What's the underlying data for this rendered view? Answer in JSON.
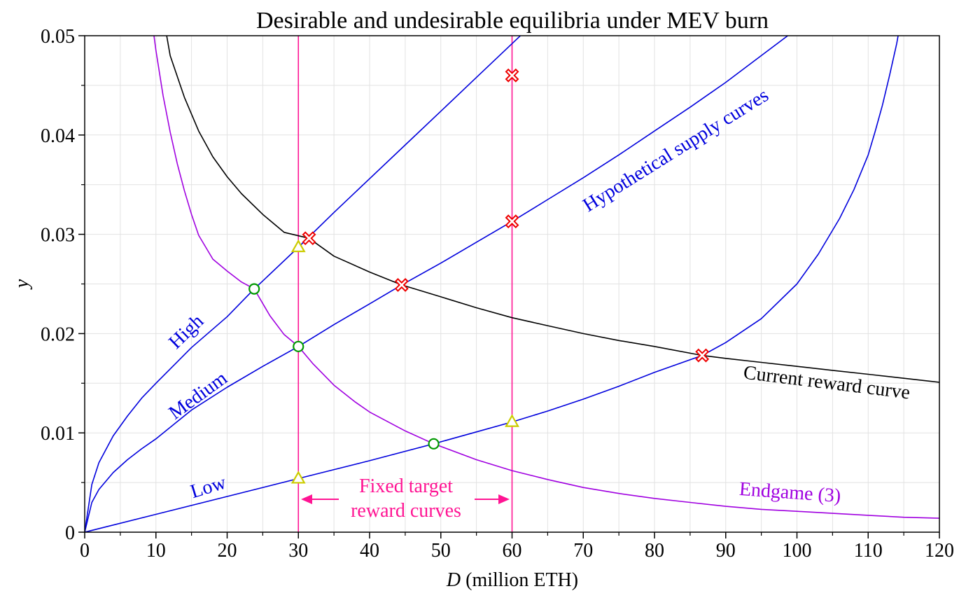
{
  "chart_data": {
    "type": "line",
    "title": "Desirable and undesirable equilibria under MEV burn",
    "xlabel_italic": "D",
    "xlabel_rest": " (million ETH)",
    "ylabel": "y",
    "xlim": [
      0,
      120
    ],
    "ylim": [
      0,
      0.05
    ],
    "x_ticks": [
      0,
      10,
      20,
      30,
      40,
      50,
      60,
      70,
      80,
      90,
      100,
      110,
      120
    ],
    "y_ticks": [
      0,
      0.01,
      0.02,
      0.03,
      0.04,
      0.05
    ],
    "x_tick_labels": [
      "0",
      "10",
      "20",
      "30",
      "40",
      "50",
      "60",
      "70",
      "80",
      "90",
      "100",
      "110",
      "120"
    ],
    "y_tick_labels": [
      "0",
      "0.01",
      "0.02",
      "0.03",
      "0.04",
      "0.05"
    ],
    "grid": true,
    "colors": {
      "supply": "#0000dd",
      "reward": "#000000",
      "endgame": "#a000e0",
      "target": "#ff1493",
      "desirable": "#009900",
      "undesirable": "#ee0000",
      "triangle": "#cccc00"
    },
    "series": [
      {
        "name": "High",
        "kind": "supply",
        "x": [
          0,
          1,
          2,
          4,
          6,
          8,
          10,
          15,
          20,
          23.8,
          25,
          30,
          35,
          40,
          45,
          50,
          55,
          60,
          65,
          67.5
        ],
        "y": [
          0,
          0.0048,
          0.007,
          0.0097,
          0.0117,
          0.0135,
          0.015,
          0.0186,
          0.0217,
          0.0245,
          0.0253,
          0.0287,
          0.0322,
          0.0356,
          0.039,
          0.0424,
          0.0458,
          0.0492,
          0.0526,
          0.0542
        ]
      },
      {
        "name": "Medium",
        "kind": "supply",
        "x": [
          0,
          1,
          2,
          4,
          6,
          8,
          10,
          15,
          20,
          25,
          30,
          35,
          40,
          44.5,
          50,
          55,
          60,
          65,
          70,
          75,
          80,
          85,
          90,
          95,
          100
        ],
        "y": [
          0,
          0.003,
          0.0043,
          0.006,
          0.0073,
          0.0084,
          0.0094,
          0.0123,
          0.0146,
          0.0167,
          0.0187,
          0.0209,
          0.023,
          0.0249,
          0.0271,
          0.0292,
          0.0313,
          0.0335,
          0.0357,
          0.038,
          0.0404,
          0.0428,
          0.0453,
          0.048,
          0.0507
        ]
      },
      {
        "name": "Low",
        "kind": "supply",
        "x": [
          0,
          10,
          20,
          30,
          40,
          49,
          55,
          60,
          65,
          70,
          75,
          80,
          86.7,
          90,
          95,
          100,
          103,
          106,
          108,
          110,
          111,
          112,
          113,
          114,
          114.7
        ],
        "y": [
          0,
          0.0018,
          0.0036,
          0.0054,
          0.0072,
          0.0089,
          0.0101,
          0.0111,
          0.0122,
          0.0134,
          0.0147,
          0.0161,
          0.0178,
          0.0191,
          0.0215,
          0.025,
          0.028,
          0.0316,
          0.0345,
          0.038,
          0.0404,
          0.043,
          0.046,
          0.0492,
          0.052
        ]
      },
      {
        "name": "Current reward curve",
        "kind": "reward",
        "x": [
          11.0,
          12,
          14,
          16,
          18,
          20,
          22,
          25,
          28,
          31.5,
          35,
          40,
          44.5,
          50,
          55,
          60,
          65,
          70,
          75,
          80,
          86.7,
          90,
          95,
          100,
          105,
          110,
          115,
          120
        ],
        "y": [
          0.0521,
          0.048,
          0.0438,
          0.0404,
          0.0378,
          0.0358,
          0.0341,
          0.032,
          0.0302,
          0.0296,
          0.0278,
          0.0262,
          0.0249,
          0.0237,
          0.0226,
          0.0216,
          0.0208,
          0.02,
          0.0193,
          0.0187,
          0.0178,
          0.0175,
          0.0171,
          0.0167,
          0.0163,
          0.0159,
          0.0155,
          0.0151
        ]
      },
      {
        "name": "Endgame (3)",
        "kind": "endgame",
        "x": [
          9.5,
          10,
          11,
          12,
          13,
          14,
          15,
          16,
          18,
          20,
          22,
          23.8,
          26,
          28,
          30,
          32,
          35,
          38,
          40,
          45,
          49,
          55,
          60,
          65,
          70,
          75,
          80,
          85,
          90,
          95,
          100,
          105,
          110,
          115,
          120
        ],
        "y": [
          0.0512,
          0.0485,
          0.044,
          0.0403,
          0.0371,
          0.0344,
          0.032,
          0.0299,
          0.0275,
          0.0263,
          0.0252,
          0.0245,
          0.0218,
          0.0199,
          0.0187,
          0.017,
          0.0148,
          0.0131,
          0.0121,
          0.0102,
          0.0089,
          0.0073,
          0.0062,
          0.0053,
          0.0045,
          0.0039,
          0.0034,
          0.003,
          0.0026,
          0.0023,
          0.0021,
          0.0019,
          0.0017,
          0.0015,
          0.0014
        ]
      }
    ],
    "vertical_lines": [
      30,
      60
    ],
    "desirable_points": [
      {
        "x": 23.8,
        "y": 0.0245
      },
      {
        "x": 30,
        "y": 0.0187
      },
      {
        "x": 49,
        "y": 0.0089
      }
    ],
    "undesirable_points": [
      {
        "x": 31.5,
        "y": 0.0296
      },
      {
        "x": 60,
        "y": 0.046
      },
      {
        "x": 44.5,
        "y": 0.0249
      },
      {
        "x": 60,
        "y": 0.0313
      },
      {
        "x": 86.7,
        "y": 0.0178
      }
    ],
    "triangle_points": [
      {
        "x": 30,
        "y": 0.0287
      },
      {
        "x": 30,
        "y": 0.0054
      },
      {
        "x": 60,
        "y": 0.0111
      }
    ],
    "annotations": {
      "high": "High",
      "medium": "Medium",
      "low": "Low",
      "hypothetical": "Hypothetical supply curves",
      "current": "Current reward curve",
      "endgame": "Endgame (3)",
      "fixed_line1": "Fixed target",
      "fixed_line2": "reward curves"
    }
  }
}
